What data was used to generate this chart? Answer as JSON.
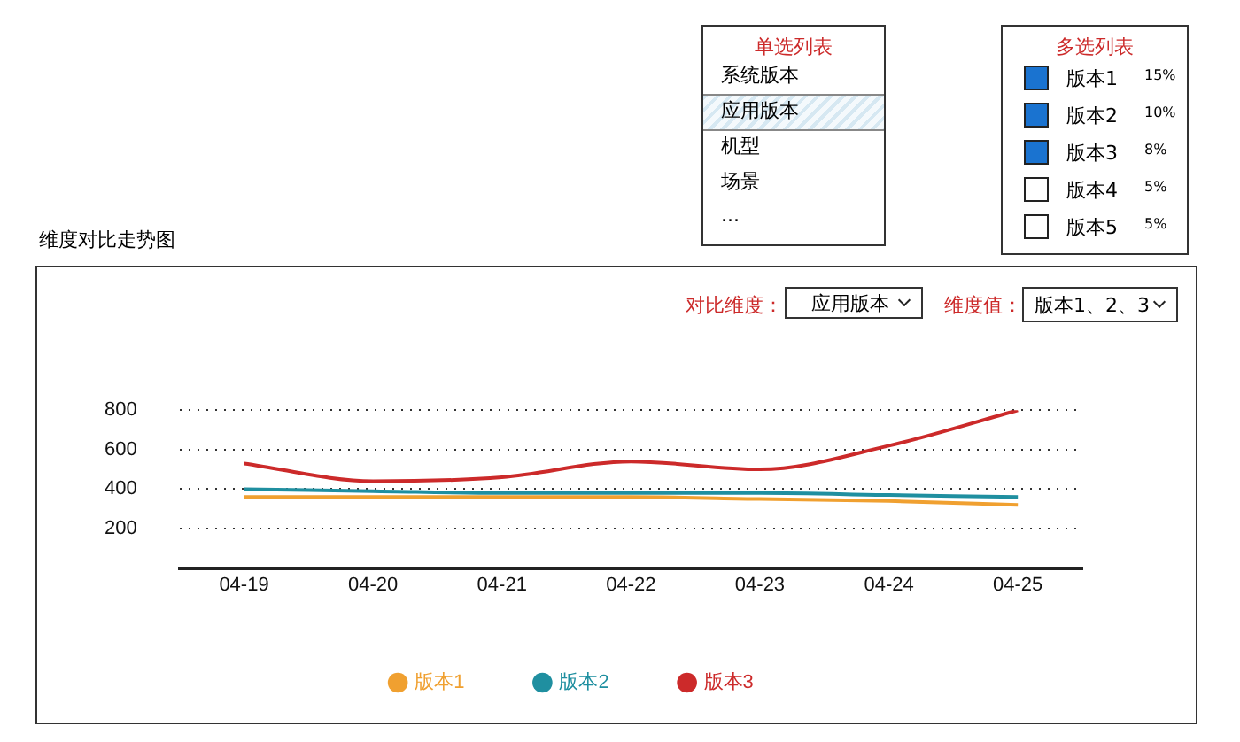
{
  "chart_data": {
    "type": "line",
    "title": "维度对比走势图",
    "categories": [
      "04-19",
      "04-20",
      "04-21",
      "04-22",
      "04-23",
      "04-24",
      "04-25"
    ],
    "series": [
      {
        "name": "版本1",
        "color": "#f0a030",
        "values": [
          360,
          360,
          360,
          360,
          350,
          340,
          320
        ]
      },
      {
        "name": "版本2",
        "color": "#1f8fa0",
        "values": [
          400,
          390,
          380,
          380,
          380,
          370,
          360
        ]
      },
      {
        "name": "版本3",
        "color": "#cc2a2a",
        "values": [
          530,
          440,
          460,
          540,
          500,
          620,
          800
        ]
      }
    ],
    "ylim": [
      0,
      800
    ],
    "yticks": [
      200,
      400,
      600,
      800
    ],
    "grid": "y",
    "legend": "bottom",
    "marker": "none",
    "line_style": "solid",
    "annotations": [
      "单选列表",
      "系统版本",
      "应用版本",
      "机型",
      "场景",
      "...",
      "多选列表",
      "版本1",
      "15%",
      "版本2",
      "10%",
      "版本3",
      "8%",
      "版本4",
      "5%",
      "版本5",
      "5%",
      "对比维度：",
      "应用版本",
      "维度值：",
      "版本1、2、3"
    ]
  }
}
